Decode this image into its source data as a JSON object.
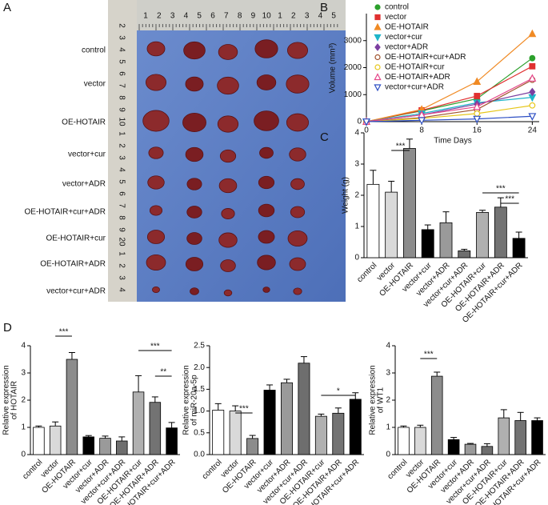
{
  "panel_labels": [
    "A",
    "B",
    "C",
    "D"
  ],
  "photo": {
    "rows": [
      "control",
      "vector",
      "OE-HOTAIR",
      "vector+cur",
      "vector+ADR",
      "OE-HOTAIR+cur+ADR",
      "OE-HOTAIR+cur",
      "OE-HOTAIR+ADR",
      "vector+cur+ADR"
    ],
    "top_ruler": [
      "1",
      "2",
      "3",
      "4",
      "5",
      "6",
      "7",
      "8",
      "9",
      "10",
      "1",
      "2",
      "3",
      "4",
      "5"
    ],
    "left_ruler": [
      "2",
      "3",
      "4",
      "5",
      "6",
      "7",
      "8",
      "9",
      "10",
      "1",
      "2",
      "3",
      "4",
      "5",
      "6",
      "7",
      "8",
      "9",
      "20",
      "1",
      "2",
      "3",
      "4"
    ]
  },
  "chart_data": [
    {
      "type": "line",
      "xlabel": "Time Days",
      "ylabel": "Volume (mm³)",
      "x": [
        0,
        8,
        16,
        24
      ],
      "xlim": [
        0,
        25
      ],
      "xticks": [
        0,
        8,
        16,
        24
      ],
      "ylim": [
        0,
        4000
      ],
      "yticks": [
        0,
        1000,
        2000,
        3000
      ],
      "series": [
        {
          "name": "control",
          "color": "#2ca02c",
          "marker": "circle",
          "filled": true,
          "values": [
            0,
            400,
            850,
            2350
          ]
        },
        {
          "name": "vector",
          "color": "#e03030",
          "marker": "square",
          "filled": true,
          "values": [
            0,
            420,
            950,
            2050
          ]
        },
        {
          "name": "OE-HOTAIR",
          "color": "#f08a24",
          "marker": "triangle",
          "filled": true,
          "values": [
            0,
            450,
            1480,
            3250
          ]
        },
        {
          "name": "vector+cur",
          "color": "#1fb5c9",
          "marker": "triangle-down",
          "filled": true,
          "values": [
            0,
            300,
            700,
            900
          ]
        },
        {
          "name": "vector+ADR",
          "color": "#7b3fa0",
          "marker": "diamond",
          "filled": true,
          "values": [
            0,
            250,
            650,
            1100
          ]
        },
        {
          "name": "OE-HOTAIR+cur+ADR",
          "color": "#a0522d",
          "marker": "circle",
          "filled": false,
          "values": [
            0,
            150,
            450,
            1550
          ]
        },
        {
          "name": "OE-HOTAIR+cur",
          "color": "#e6c619",
          "marker": "circle",
          "filled": false,
          "values": [
            0,
            120,
            300,
            600
          ]
        },
        {
          "name": "OE-HOTAIR+ADR",
          "color": "#e5488a",
          "marker": "triangle",
          "filled": false,
          "values": [
            0,
            250,
            550,
            1600
          ]
        },
        {
          "name": "vector+cur+ADR",
          "color": "#2d4fc4",
          "marker": "triangle-down",
          "filled": false,
          "values": [
            0,
            50,
            100,
            200
          ]
        }
      ]
    },
    {
      "type": "bar",
      "ylabel": [
        "Weight (g)"
      ],
      "ylim": [
        0,
        4
      ],
      "yticks": [
        0,
        1,
        2,
        3,
        4
      ],
      "categories": [
        "control",
        "vector",
        "OE-HOTAIR",
        "vector+cur",
        "vector+ADR",
        "vector+cur+ADR",
        "OE-HOTAIR+cur",
        "OE-HOTAIR+ADR",
        "OE-HOTAIR+cur+ADR"
      ],
      "values": [
        2.35,
        2.1,
        3.5,
        0.9,
        1.12,
        0.22,
        1.45,
        1.62,
        0.62
      ],
      "errors": [
        0.45,
        0.35,
        0.3,
        0.15,
        0.35,
        0.05,
        0.07,
        0.3,
        0.2
      ],
      "colors": [
        "#ffffff",
        "#d9d9d9",
        "#8c8c8c",
        "#000000",
        "#9a9a9a",
        "#6e6e6e",
        "#b0b0b0",
        "#737373",
        "#000000"
      ],
      "annotations": [
        "***",
        "***",
        "***"
      ]
    },
    {
      "type": "bar",
      "ylabel": [
        "Relative expression",
        "of HOTAIR"
      ],
      "ylim": [
        0,
        4
      ],
      "yticks": [
        0,
        1,
        2,
        3,
        4
      ],
      "categories": [
        "control",
        "vector",
        "OE-HOTAIR",
        "vector+cur",
        "vector+ADR",
        "vector+cur+ADR",
        "OE-HOTAIR+cur",
        "OE-HOTAIR+ADR",
        "OE-HOTAIR+cur+ADR"
      ],
      "values": [
        1.0,
        1.05,
        3.5,
        0.65,
        0.6,
        0.5,
        2.3,
        1.92,
        0.98
      ],
      "errors": [
        0.05,
        0.15,
        0.25,
        0.05,
        0.08,
        0.15,
        0.6,
        0.2,
        0.2
      ],
      "colors": [
        "#ffffff",
        "#d9d9d9",
        "#8c8c8c",
        "#000000",
        "#9a9a9a",
        "#6e6e6e",
        "#b0b0b0",
        "#737373",
        "#000000"
      ],
      "annotations": [
        "***",
        "***",
        "**"
      ]
    },
    {
      "type": "bar",
      "ylabel": [
        "Relative expression",
        "of miR-20a-5p"
      ],
      "ylim": [
        0,
        2.5
      ],
      "yticks": [
        {
          "value": 0,
          "label": "0.0"
        },
        0.5,
        {
          "value": 1,
          "label": "1.0"
        },
        1.5,
        {
          "value": 2,
          "label": "2.0"
        },
        2.5
      ],
      "categories": [
        "control",
        "vector",
        "OE-HOTAIR",
        "vector+cur",
        "vector+ADR",
        "vector+cur+ADR",
        "OE-HOTAIR+cur",
        "OE-HOTAIR+ADR",
        "OE-HOTAIR+cur+ADR"
      ],
      "values": [
        1.02,
        1.0,
        0.37,
        1.48,
        1.65,
        2.1,
        0.88,
        0.95,
        1.27
      ],
      "errors": [
        0.15,
        0.12,
        0.07,
        0.12,
        0.08,
        0.15,
        0.05,
        0.12,
        0.15
      ],
      "colors": [
        "#ffffff",
        "#d9d9d9",
        "#8c8c8c",
        "#000000",
        "#9a9a9a",
        "#6e6e6e",
        "#b0b0b0",
        "#737373",
        "#000000"
      ],
      "annotations": [
        "***",
        "*"
      ]
    },
    {
      "type": "bar",
      "ylabel": [
        "Relative expression",
        "of WT1"
      ],
      "ylim": [
        0,
        4
      ],
      "yticks": [
        0,
        1,
        2,
        3,
        4
      ],
      "categories": [
        "control",
        "vector",
        "OE-HOTAIR",
        "vector+cur",
        "vector+ADR",
        "vector+cur+ADR",
        "OE-HOTAIR+cur",
        "OE-HOTAIR+ADR",
        "OE-HOTAIR+cur+ADR"
      ],
      "values": [
        1.0,
        1.0,
        2.88,
        0.55,
        0.38,
        0.3,
        1.35,
        1.25,
        1.25
      ],
      "errors": [
        0.05,
        0.08,
        0.15,
        0.08,
        0.03,
        0.1,
        0.3,
        0.3,
        0.1
      ],
      "colors": [
        "#ffffff",
        "#d9d9d9",
        "#8c8c8c",
        "#000000",
        "#9a9a9a",
        "#6e6e6e",
        "#b0b0b0",
        "#737373",
        "#000000"
      ],
      "annotations": [
        "***"
      ]
    }
  ]
}
